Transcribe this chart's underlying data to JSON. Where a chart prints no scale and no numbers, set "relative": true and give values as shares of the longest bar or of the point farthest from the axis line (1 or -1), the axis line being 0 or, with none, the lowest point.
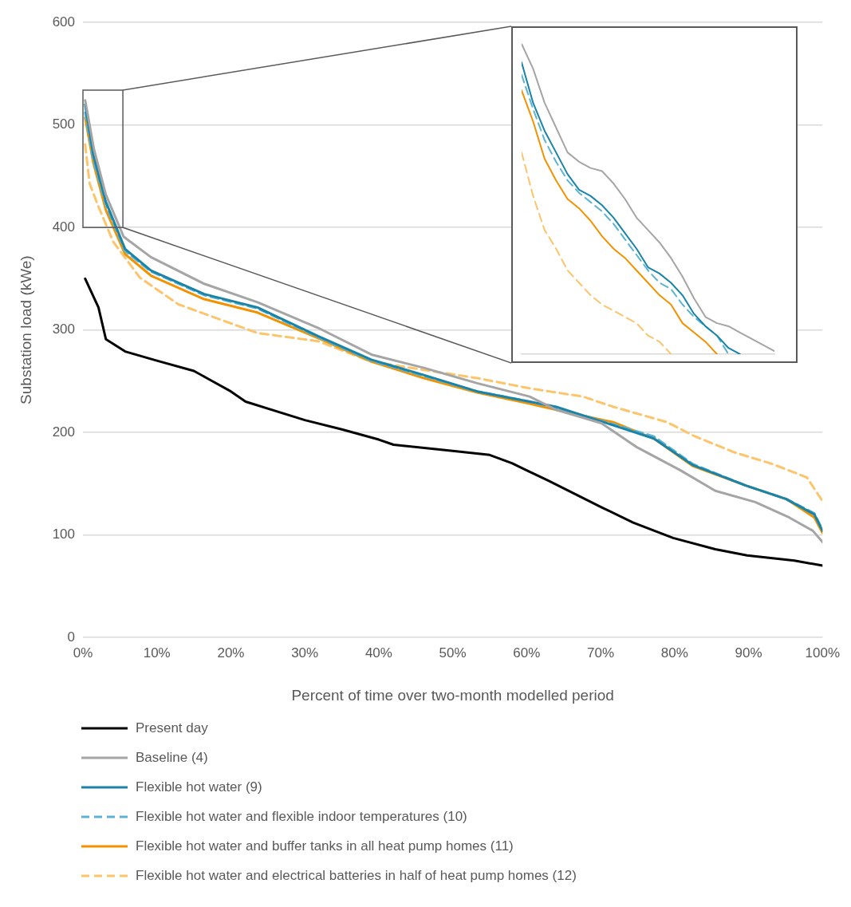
{
  "chart_data": [
    {
      "type": "line",
      "xlabel": "Percent of time over two-month modelled period",
      "ylabel": "Substation load (kWe)",
      "xlim": [
        0,
        100
      ],
      "ylim": [
        0,
        600
      ],
      "xticks": [
        {
          "value": 0,
          "label": "0%"
        },
        {
          "value": 10,
          "label": "10%"
        },
        {
          "value": 20,
          "label": "20%"
        },
        {
          "value": 30,
          "label": "30%"
        },
        {
          "value": 40,
          "label": "40%"
        },
        {
          "value": 50,
          "label": "50%"
        },
        {
          "value": 60,
          "label": "60%"
        },
        {
          "value": 70,
          "label": "70%"
        },
        {
          "value": 80,
          "label": "80%"
        },
        {
          "value": 90,
          "label": "90%"
        },
        {
          "value": 100,
          "label": "100%"
        }
      ],
      "yticks": [
        0,
        100,
        200,
        300,
        400,
        500,
        600
      ],
      "grid": "y",
      "legend": "bottom",
      "marker": "none",
      "series": [
        {
          "name": "Present day",
          "color": "#000000",
          "line_style": "solid",
          "x": [
            0.3,
            2.1,
            3.1,
            5.7,
            10,
            15,
            17,
            20,
            22,
            30,
            35,
            40,
            42,
            50,
            55,
            58,
            60,
            62.9,
            66.5,
            70.1,
            74.4,
            79.8,
            85.5,
            89.8,
            96.2,
            100
          ],
          "values": [
            350,
            322,
            291,
            279,
            270,
            260,
            252,
            240,
            230,
            212,
            203,
            193,
            188,
            182,
            178,
            170,
            163,
            153,
            140,
            127,
            112,
            97,
            86,
            80,
            75,
            70
          ]
        },
        {
          "name": "Baseline (4)",
          "color": "#a5a5a5",
          "line_style": "solid",
          "x": [
            0.3,
            1.5,
            3.1,
            5.5,
            9.2,
            16.4,
            23.6,
            31.8,
            39,
            46.1,
            53.3,
            60.4,
            64,
            70.1,
            74.8,
            80.8,
            85.5,
            90.9,
            95.5,
            98.7,
            100
          ],
          "values": [
            524,
            476,
            432,
            391,
            371,
            345,
            327,
            302,
            276,
            263,
            248,
            235,
            222,
            209,
            186,
            163,
            143,
            132,
            117,
            104,
            93
          ]
        },
        {
          "name": "Flexible hot water (9)",
          "color": "#1a84a8",
          "line_style": "solid",
          "x": [
            0.3,
            1.4,
            3.1,
            5.7,
            9.2,
            16.4,
            23.6,
            31.8,
            39,
            46.1,
            53.3,
            60.4,
            64,
            71.7,
            77.2,
            82.5,
            89.7,
            95.1,
            98.9,
            100
          ],
          "values": [
            520,
            471,
            425,
            379,
            358,
            335,
            322,
            294,
            271,
            256,
            240,
            230,
            225,
            207,
            194,
            168,
            148,
            135,
            120,
            104
          ]
        },
        {
          "name": "Flexible hot water and flexible indoor temperatures (10)",
          "color": "#5cb3d3",
          "line_style": "dashed",
          "x": [
            0.3,
            1.4,
            3.1,
            5.7,
            9.2,
            16.4,
            23.6,
            31.8,
            39,
            46.1,
            53.3,
            60.4,
            64,
            71.7,
            77.2,
            82.5,
            89.7,
            95.1,
            98.9,
            100
          ],
          "values": [
            512,
            466,
            422,
            377,
            357,
            334,
            321,
            293,
            270,
            255,
            240,
            230,
            224,
            208,
            196,
            169,
            148,
            135,
            121,
            105
          ]
        },
        {
          "name": "Flexible hot water and buffer tanks in all heat pump homes (11)",
          "color": "#f39200",
          "line_style": "solid",
          "x": [
            0.3,
            1.4,
            3.1,
            5.7,
            9.2,
            16.4,
            23.6,
            31.8,
            39,
            46.1,
            53.3,
            60.4,
            64,
            71.7,
            77.2,
            82.5,
            89.7,
            95.1,
            98.9,
            100
          ],
          "values": [
            507,
            463,
            417,
            374,
            353,
            330,
            317,
            292,
            269,
            253,
            239,
            228,
            222,
            210,
            194,
            167,
            148,
            135,
            117,
            102
          ]
        },
        {
          "name": "Flexible hot water and electrical batteries in half of heat pump homes (12)",
          "color": "#fcc46b",
          "line_style": "dashed",
          "x": [
            0.3,
            0.9,
            2,
            4.1,
            7.7,
            12.9,
            23.6,
            31.8,
            39,
            46.1,
            53.3,
            60.4,
            67.6,
            71.7,
            79,
            82.5,
            87.9,
            93.3,
            97.9,
            100
          ],
          "values": [
            481,
            443,
            422,
            386,
            351,
            325,
            297,
            289,
            269,
            261,
            253,
            243,
            235,
            225,
            210,
            197,
            181,
            169,
            156,
            133
          ]
        }
      ]
    },
    {
      "type": "line",
      "relative": true,
      "categories": [
        null,
        null,
        null,
        null,
        null,
        null,
        null,
        null,
        null,
        null,
        null,
        null,
        null,
        null,
        null,
        null,
        null,
        null,
        null,
        null,
        null,
        null,
        null
      ],
      "marker": "none",
      "series": [
        {
          "color": "#a5a5a5",
          "line_style": "solid",
          "values": [
            1.0,
            0.92,
            0.81,
            0.73,
            0.65,
            0.62,
            0.6,
            0.59,
            0.55,
            0.5,
            0.44,
            0.4,
            0.36,
            0.31,
            0.25,
            0.18,
            0.12,
            0.1,
            0.09,
            0.07,
            0.05,
            0.03,
            0.01
          ]
        },
        {
          "color": "#1a84a8",
          "line_style": "solid",
          "values": [
            0.94,
            0.81,
            0.72,
            0.65,
            0.58,
            0.53,
            0.51,
            0.48,
            0.44,
            0.39,
            0.34,
            0.28,
            0.26,
            0.23,
            0.19,
            0.13,
            0.09,
            0.06,
            0.02,
            0.0,
            null,
            null,
            null
          ]
        },
        {
          "color": "#5cb3d3",
          "line_style": "dashed",
          "values": [
            0.9,
            0.79,
            0.69,
            0.62,
            0.56,
            0.52,
            0.49,
            0.46,
            0.42,
            0.37,
            0.32,
            0.27,
            0.23,
            0.21,
            0.16,
            0.12,
            0.09,
            0.06,
            0.0,
            null,
            null,
            null,
            null
          ]
        },
        {
          "color": "#f39200",
          "line_style": "solid",
          "values": [
            0.85,
            0.75,
            0.63,
            0.56,
            0.5,
            0.47,
            0.43,
            0.38,
            0.34,
            0.31,
            0.27,
            0.23,
            0.19,
            0.16,
            0.1,
            0.07,
            0.04,
            0.0,
            null,
            null,
            null,
            null,
            null
          ]
        },
        {
          "color": "#fcc46b",
          "line_style": "dashed",
          "values": [
            0.65,
            0.51,
            0.4,
            0.34,
            0.27,
            0.23,
            0.19,
            0.16,
            0.14,
            0.12,
            0.1,
            0.06,
            0.04,
            0.0,
            null,
            null,
            null,
            null,
            null,
            null,
            null,
            null,
            null
          ]
        }
      ]
    }
  ]
}
